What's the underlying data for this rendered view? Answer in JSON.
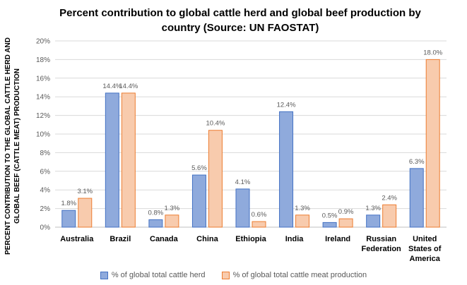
{
  "chart_data": {
    "type": "bar",
    "title": "Percent contribution to global cattle herd and global beef production by country (Source: UN FAOSTAT)",
    "ylabel": "PERCENT CONTRIBUTION TO THE GLOBAL CATTLE HERD AND GLOBAL BEEF (CATTLE MEAT) PRODUCTION",
    "xlabel": "",
    "categories": [
      "Australia",
      "Brazil",
      "Canada",
      "China",
      "Ethiopia",
      "India",
      "Ireland",
      "Russian Federation",
      "United States of America"
    ],
    "category_lines": [
      [
        "Australia"
      ],
      [
        "Brazil"
      ],
      [
        "Canada"
      ],
      [
        "China"
      ],
      [
        "Ethiopia"
      ],
      [
        "India"
      ],
      [
        "Ireland"
      ],
      [
        "Russian",
        "Federation"
      ],
      [
        "United",
        "States of",
        "America"
      ]
    ],
    "ylim": [
      0,
      20
    ],
    "yticks": [
      "0%",
      "2%",
      "4%",
      "6%",
      "8%",
      "10%",
      "12%",
      "14%",
      "16%",
      "18%",
      "20%"
    ],
    "grid": true,
    "legend": "bottom",
    "series": [
      {
        "name": "% of global total cattle herd",
        "values": [
          1.8,
          14.4,
          0.8,
          5.6,
          4.1,
          12.4,
          0.5,
          1.3,
          6.3
        ],
        "labels": [
          "1.8%",
          "14.4%",
          "0.8%",
          "5.6%",
          "4.1%",
          "12.4%",
          "0.5%",
          "1.3%",
          "6.3%"
        ],
        "fill": "#8faadc",
        "stroke": "#4472c4"
      },
      {
        "name": "% of global total cattle meat production",
        "values": [
          3.1,
          14.4,
          1.3,
          10.4,
          0.6,
          1.3,
          0.9,
          2.4,
          18.0
        ],
        "labels": [
          "3.1%",
          "14.4%",
          "1.3%",
          "10.4%",
          "0.6%",
          "1.3%",
          "0.9%",
          "2.4%",
          "18.0%"
        ],
        "fill": "#f8cbad",
        "stroke": "#ed7d31"
      }
    ]
  }
}
